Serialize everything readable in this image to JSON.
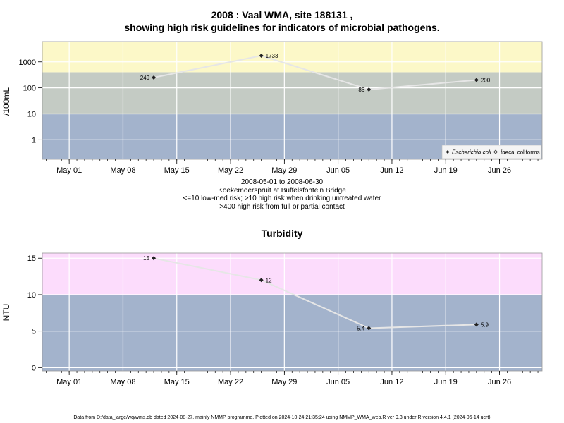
{
  "title_line1": "2008 : Vaal WMA, site 188131 ,",
  "title_line2": "showing high risk guidelines for indicators of microbial pathogens.",
  "caption": {
    "line1": "2008-05-01 to 2008-06-30",
    "line2": "Koekemoerspruit at Buffelsfontein Bridge",
    "line3": "<=10 low-med risk; >10 high risk when drinking untreated water",
    "line4": ">400 high risk from full or partial contact"
  },
  "footer": "Data from D:/data_large/wq/wms.db dated 2024-08-27, mainly NMMP programme. Plotted on 2024-10-24 21:35:24 using NMMP_WMA_web.R ver 9.3 under R version 4.4.1 (2024-06-14 ucrt)",
  "chart_data": [
    {
      "type": "line",
      "ylabel": "/100mL",
      "yscale": "log10",
      "x_tick_labels": [
        "May 01",
        "May 08",
        "May 15",
        "May 22",
        "May 29",
        "Jun 05",
        "Jun 12",
        "Jun 19",
        "Jun 26"
      ],
      "x_tick_dates": [
        "2008-05-01",
        "2008-05-08",
        "2008-05-15",
        "2008-05-22",
        "2008-05-29",
        "2008-06-05",
        "2008-06-12",
        "2008-06-19",
        "2008-06-26"
      ],
      "y_tick_labels": [
        "1",
        "10",
        "100",
        "1000"
      ],
      "y_tick_values": [
        1,
        10,
        100,
        1000
      ],
      "grid": true,
      "bands": [
        {
          "from": 0,
          "to": 10,
          "color": "#a3b3cc",
          "label": "low-med risk"
        },
        {
          "from": 10,
          "to": 400,
          "color": "#c4cbc4",
          "label": "high risk when drinking"
        },
        {
          "from": 400,
          "to": 10000,
          "color": "#fcf8c8",
          "label": "high risk from contact"
        }
      ],
      "series": [
        {
          "name": "Escherichia coli",
          "marker": "filled-diamond",
          "points": [
            {
              "x": "2008-05-12",
              "y": 249,
              "label": "249",
              "side": "left"
            },
            {
              "x": "2008-05-26",
              "y": 1733,
              "label": "1733",
              "side": "right"
            },
            {
              "x": "2008-06-09",
              "y": 86,
              "label": "86",
              "side": "left"
            },
            {
              "x": "2008-06-23",
              "y": 200,
              "label": "200",
              "side": "right"
            }
          ]
        }
      ],
      "legend": {
        "position": "bottom-right",
        "entries": [
          {
            "label": "Escherichia coli",
            "marker": "filled-diamond",
            "italic": true
          },
          {
            "label": "faecal coliforms",
            "marker": "open-diamond",
            "italic": false
          }
        ]
      }
    },
    {
      "type": "line",
      "title": "Turbidity",
      "ylabel": "NTU",
      "yscale": "linear",
      "x_tick_labels": [
        "May 01",
        "May 08",
        "May 15",
        "May 22",
        "May 29",
        "Jun 05",
        "Jun 12",
        "Jun 19",
        "Jun 26"
      ],
      "x_tick_dates": [
        "2008-05-01",
        "2008-05-08",
        "2008-05-15",
        "2008-05-22",
        "2008-05-29",
        "2008-06-05",
        "2008-06-12",
        "2008-06-19",
        "2008-06-26"
      ],
      "y_tick_labels": [
        "0",
        "5",
        "10",
        "15"
      ],
      "y_tick_values": [
        0,
        5,
        10,
        15
      ],
      "grid": true,
      "bands": [
        {
          "from": -1,
          "to": 10,
          "color": "#a3b3cc",
          "label": ""
        },
        {
          "from": 10,
          "to": 16,
          "color": "#fcdcfc",
          "label": ""
        }
      ],
      "series": [
        {
          "name": "Turbidity",
          "marker": "filled-diamond",
          "points": [
            {
              "x": "2008-05-12",
              "y": 15,
              "label": "15",
              "side": "left"
            },
            {
              "x": "2008-05-26",
              "y": 12,
              "label": "12",
              "side": "right"
            },
            {
              "x": "2008-06-09",
              "y": 5.4,
              "label": "5.4",
              "side": "left"
            },
            {
              "x": "2008-06-23",
              "y": 5.9,
              "label": "5.9",
              "side": "right"
            }
          ]
        }
      ]
    }
  ]
}
